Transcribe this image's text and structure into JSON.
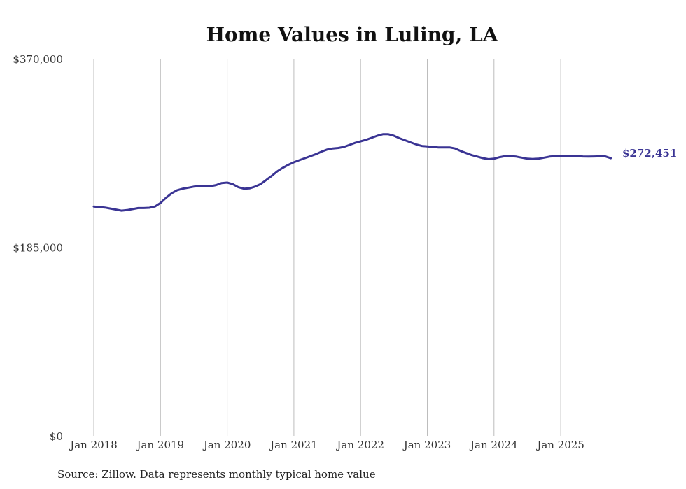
{
  "chart_data": {
    "type": "line",
    "title": "Home Values in Luling, LA",
    "xlabel": "",
    "ylabel": "",
    "ylim": [
      0,
      370000
    ],
    "y_ticks": [
      "$0",
      "$185,000",
      "$370,000"
    ],
    "x_ticks": [
      "Jan 2018",
      "Jan 2019",
      "Jan 2020",
      "Jan 2021",
      "Jan 2022",
      "Jan 2023",
      "Jan 2024",
      "Jan 2025"
    ],
    "grid": "vertical",
    "legend": "none",
    "end_label": "$272,451",
    "source": "Source: Zillow. Data represents monthly typical home value",
    "series_color": "#3a3494",
    "series": [
      {
        "x": [
          "2018-01",
          "2018-02",
          "2018-03",
          "2018-04",
          "2018-05",
          "2018-06",
          "2018-07",
          "2018-08",
          "2018-09",
          "2018-10",
          "2018-11",
          "2018-12",
          "2019-01",
          "2019-02",
          "2019-03",
          "2019-04",
          "2019-05",
          "2019-06",
          "2019-07",
          "2019-08",
          "2019-09",
          "2019-10",
          "2019-11",
          "2019-12",
          "2020-01",
          "2020-02",
          "2020-03",
          "2020-04",
          "2020-05",
          "2020-06",
          "2020-07",
          "2020-08",
          "2020-09",
          "2020-10",
          "2020-11",
          "2020-12",
          "2021-01",
          "2021-02",
          "2021-03",
          "2021-04",
          "2021-05",
          "2021-06",
          "2021-07",
          "2021-08",
          "2021-09",
          "2021-10",
          "2021-11",
          "2021-12",
          "2022-01",
          "2022-02",
          "2022-03",
          "2022-04",
          "2022-05",
          "2022-06",
          "2022-07",
          "2022-08",
          "2022-09",
          "2022-10",
          "2022-11",
          "2022-12",
          "2023-01",
          "2023-02",
          "2023-03",
          "2023-04",
          "2023-05",
          "2023-06",
          "2023-07",
          "2023-08",
          "2023-09",
          "2023-10",
          "2023-11",
          "2023-12",
          "2024-01",
          "2024-02",
          "2024-03",
          "2024-04",
          "2024-05",
          "2024-06",
          "2024-07",
          "2024-08",
          "2024-09",
          "2024-10",
          "2024-11",
          "2024-12",
          "2025-01",
          "2025-02",
          "2025-03",
          "2025-04",
          "2025-05",
          "2025-06",
          "2025-07",
          "2025-08",
          "2025-09",
          "2025-10"
        ],
        "values": [
          225000,
          224500,
          224000,
          223000,
          222000,
          221000,
          221500,
          222500,
          223500,
          223500,
          223800,
          225000,
          228500,
          233500,
          238000,
          241000,
          242500,
          243500,
          244500,
          245000,
          245000,
          245000,
          246000,
          248000,
          248500,
          247000,
          244000,
          242500,
          242800,
          244500,
          247000,
          251000,
          255000,
          259500,
          263000,
          266000,
          268500,
          270500,
          272500,
          274500,
          276500,
          279000,
          281000,
          282000,
          282500,
          283500,
          285500,
          287500,
          289000,
          290500,
          292500,
          294500,
          296000,
          296000,
          294500,
          292000,
          290000,
          288000,
          286000,
          284500,
          284000,
          283500,
          283000,
          283000,
          283000,
          282000,
          279500,
          277500,
          275500,
          274000,
          272500,
          271500,
          272000,
          273500,
          274500,
          274500,
          274000,
          273000,
          272000,
          271700,
          272000,
          273000,
          274000,
          274500,
          274600,
          274700,
          274600,
          274400,
          274200,
          274100,
          274200,
          274300,
          274300,
          272451
        ]
      }
    ]
  }
}
